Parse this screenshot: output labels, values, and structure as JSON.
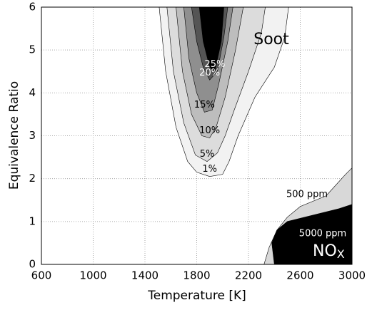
{
  "chart_data": {
    "type": "contour",
    "xlabel": "Temperature [K]",
    "ylabel": "Equivalence Ratio",
    "xlim": [
      600,
      3000
    ],
    "xticks": [
      600,
      1000,
      1400,
      1800,
      2200,
      2600,
      3000
    ],
    "ylim": [
      0,
      6
    ],
    "yticks": [
      0,
      1,
      2,
      3,
      4,
      5,
      6
    ],
    "grid": true,
    "series": [
      {
        "name": "Soot",
        "levels": [
          {
            "value": 1,
            "label": "1%",
            "color": "#f2f2f2",
            "x": [
              1510,
              1560,
              1640,
              1730,
              1800,
              1900,
              2000,
              2050,
              2120,
              2250,
              2400,
              2480,
              2510
            ],
            "y": [
              6,
              4.5,
              3.2,
              2.4,
              2.15,
              2.05,
              2.1,
              2.4,
              3,
              3.9,
              4.6,
              5.3,
              6
            ]
          },
          {
            "value": 5,
            "label": "5%",
            "color": "#dcdcdc",
            "x": [
              1570,
              1620,
              1700,
              1790,
              1880,
              1960,
              2020,
              2090,
              2200,
              2300,
              2330
            ],
            "y": [
              6,
              4.5,
              3.3,
              2.55,
              2.4,
              2.6,
              3,
              3.6,
              4.5,
              5.4,
              6
            ]
          },
          {
            "value": 10,
            "label": "10%",
            "color": "#bdbdbd",
            "x": [
              1640,
              1690,
              1760,
              1840,
              1900,
              1950,
              2020,
              2100,
              2160
            ],
            "y": [
              6,
              4.5,
              3.5,
              3.0,
              2.95,
              3.2,
              3.9,
              5,
              6
            ]
          },
          {
            "value": 15,
            "label": "15%",
            "color": "#8f8f8f",
            "x": [
              1700,
              1740,
              1800,
              1860,
              1920,
              1970,
              2040,
              2080
            ],
            "y": [
              6,
              4.8,
              4.0,
              3.55,
              3.6,
              4.2,
              5.2,
              6
            ]
          },
          {
            "value": 20,
            "label": "20%",
            "color": "#555555",
            "x": [
              1760,
              1800,
              1850,
              1900,
              1960,
              2010,
              2040
            ],
            "y": [
              6,
              5.2,
              4.6,
              4.3,
              4.5,
              5.3,
              6
            ]
          },
          {
            "value": 25,
            "label": "25%",
            "color": "#000000",
            "x": [
              1820,
              1850,
              1900,
              1940,
              1990,
              2010
            ],
            "y": [
              6,
              5.2,
              4.6,
              4.5,
              5.2,
              6
            ]
          }
        ]
      },
      {
        "name": "NO",
        "name_sub": "X",
        "levels": [
          {
            "value": 500,
            "label": "500 ppm",
            "color": "#d8d8d8",
            "x": [
              2320,
              2360,
              2420,
              2500,
              2600,
              2800,
              2950,
              3000,
              3000,
              2320
            ],
            "y": [
              0,
              0.4,
              0.8,
              1.1,
              1.35,
              1.6,
              2.1,
              2.25,
              0,
              0
            ]
          },
          {
            "value": 5000,
            "label": "5000 ppm",
            "color": "#000000",
            "x": [
              2380,
              2420,
              2500,
              2700,
              2900,
              3000,
              3000,
              2400
            ],
            "y": [
              0.5,
              0.8,
              1.0,
              1.15,
              1.3,
              1.4,
              0,
              0
            ]
          }
        ]
      }
    ]
  }
}
